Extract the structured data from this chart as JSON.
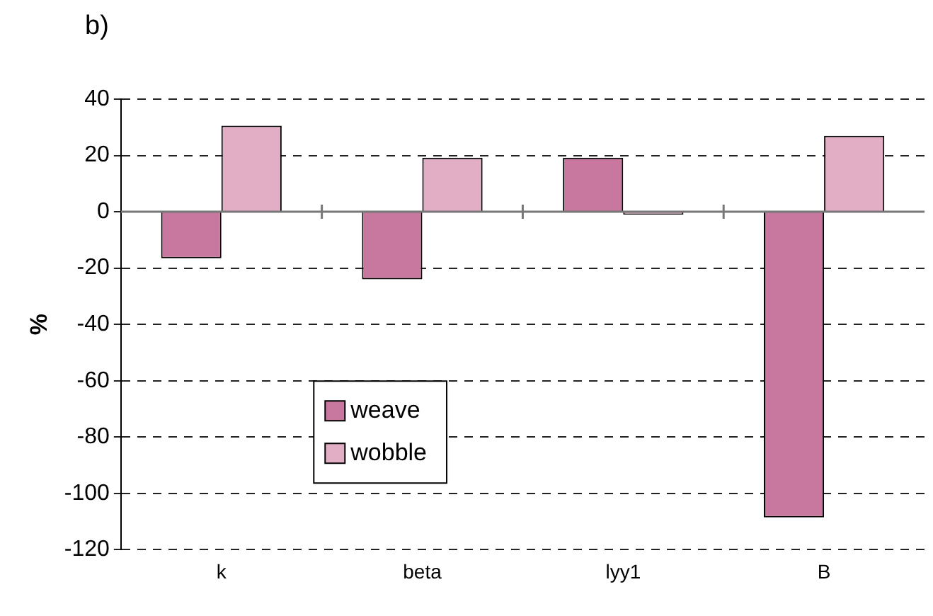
{
  "chart_data": {
    "type": "bar",
    "title": "b)",
    "ylabel": "%",
    "categories": [
      "k",
      "beta",
      "lyy1",
      "B"
    ],
    "series": [
      {
        "name": "weave",
        "color": "#c8789e",
        "values": [
          -16.5,
          -24,
          19.2,
          -108.5
        ]
      },
      {
        "name": "wobble",
        "color": "#e2aec6",
        "values": [
          30.6,
          19.2,
          -1,
          27
        ]
      }
    ],
    "ylim": [
      -120,
      40
    ],
    "yticks": [
      -120,
      -100,
      -80,
      -60,
      -40,
      -20,
      0,
      20,
      40
    ],
    "grid": "y",
    "legend": "center left"
  }
}
